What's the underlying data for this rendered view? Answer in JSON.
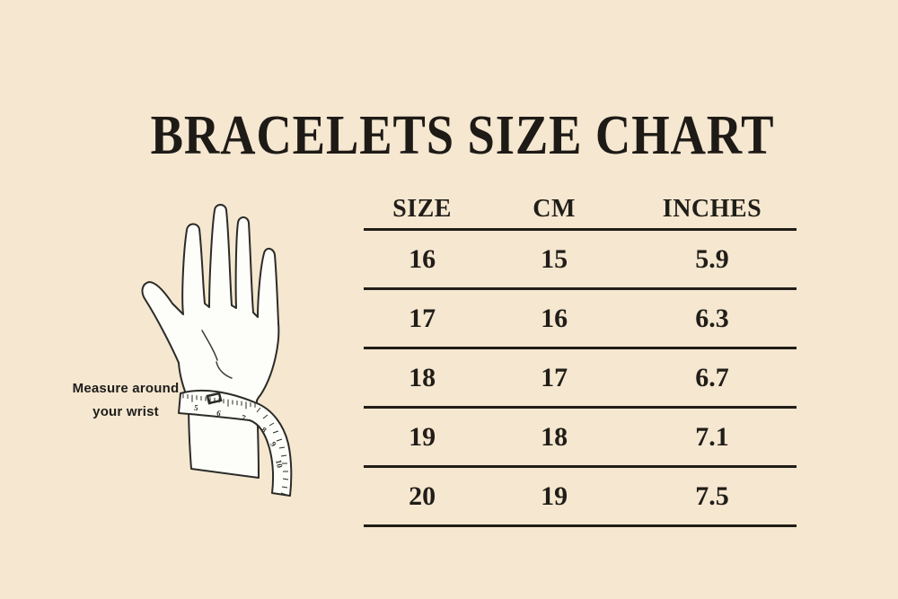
{
  "page": {
    "title": "BRACELETS SIZE CHART",
    "background_color": "#f5e7d0",
    "text_color": "#211d18"
  },
  "illustration": {
    "caption_line1": "Measure around",
    "caption_line2": "your wrist",
    "tape_numbers": [
      "5",
      "6",
      "7",
      "8",
      "9",
      "10"
    ]
  },
  "table": {
    "headers": [
      "SIZE",
      "CM",
      "INCHES"
    ],
    "rows": [
      [
        "16",
        "15",
        "5.9"
      ],
      [
        "17",
        "16",
        "6.3"
      ],
      [
        "18",
        "17",
        "6.7"
      ],
      [
        "19",
        "18",
        "7.1"
      ],
      [
        "20",
        "19",
        "7.5"
      ]
    ]
  },
  "chart_data": {
    "type": "table",
    "title": "BRACELETS SIZE CHART",
    "columns": [
      "SIZE",
      "CM",
      "INCHES"
    ],
    "rows": [
      [
        16,
        15,
        5.9
      ],
      [
        17,
        16,
        6.3
      ],
      [
        18,
        17,
        6.7
      ],
      [
        19,
        18,
        7.1
      ],
      [
        20,
        19,
        7.5
      ]
    ],
    "annotation": "Measure around your wrist"
  }
}
